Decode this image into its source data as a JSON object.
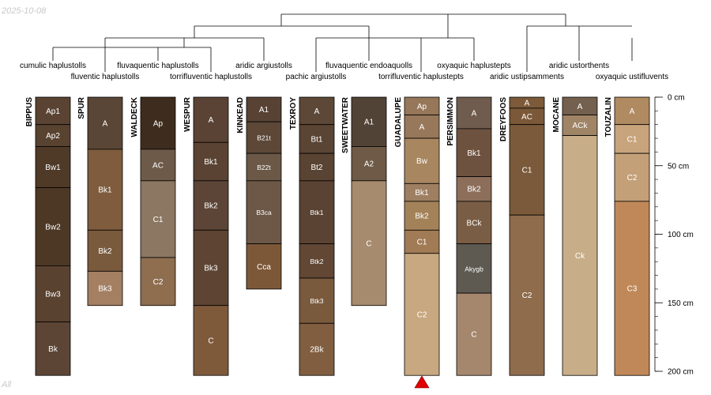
{
  "date_label": "2025-10-08",
  "footer_label": "All",
  "colors": {
    "tree_line": "#000000",
    "horizon_border": "#000000",
    "marker": "#e00000"
  },
  "depth_axis": {
    "unit": "cm",
    "range": [
      0,
      200
    ],
    "ticks": [
      {
        "depth": 0,
        "label": "0 cm"
      },
      {
        "depth": 50,
        "label": "50 cm"
      },
      {
        "depth": 100,
        "label": "100 cm"
      },
      {
        "depth": 150,
        "label": "150 cm"
      },
      {
        "depth": 200,
        "label": "200 cm"
      }
    ]
  },
  "profiles": [
    {
      "name": "BIPPUS",
      "taxon": "cumulic haplustolls",
      "horizons": [
        {
          "name": "Ap1",
          "top": 0,
          "bottom": 20,
          "color": "#5a4332"
        },
        {
          "name": "Ap2",
          "top": 20,
          "bottom": 36,
          "color": "#584230"
        },
        {
          "name": "Bw1",
          "top": 36,
          "bottom": 66,
          "color": "#4f3a28"
        },
        {
          "name": "Bw2",
          "top": 66,
          "bottom": 123,
          "color": "#4d3826"
        },
        {
          "name": "Bw3",
          "top": 123,
          "bottom": 164,
          "color": "#5a4230"
        },
        {
          "name": "Bk",
          "top": 164,
          "bottom": 203,
          "color": "#5c4535"
        }
      ]
    },
    {
      "name": "SPUR",
      "taxon": "fluventic haplustolls",
      "horizons": [
        {
          "name": "A",
          "top": 0,
          "bottom": 38,
          "color": "#5a4636"
        },
        {
          "name": "Bk1",
          "top": 38,
          "bottom": 97,
          "color": "#7e5c3d"
        },
        {
          "name": "Bk2",
          "top": 97,
          "bottom": 127,
          "color": "#7a5a3d"
        },
        {
          "name": "Bk3",
          "top": 127,
          "bottom": 152,
          "color": "#a47f62"
        }
      ]
    },
    {
      "name": "WALDECK",
      "taxon": "fluvaquentic haplustolls",
      "horizons": [
        {
          "name": "Ap",
          "top": 0,
          "bottom": 38,
          "color": "#3e2d1f"
        },
        {
          "name": "AC",
          "top": 38,
          "bottom": 61,
          "color": "#6e5a48"
        },
        {
          "name": "C1",
          "top": 61,
          "bottom": 117,
          "color": "#8c7762"
        },
        {
          "name": "C2",
          "top": 117,
          "bottom": 152,
          "color": "#8e6e4f"
        }
      ]
    },
    {
      "name": "WESPUR",
      "taxon": "torrifluventic haplustolls",
      "horizons": [
        {
          "name": "A",
          "top": 0,
          "bottom": 33,
          "color": "#5a4334"
        },
        {
          "name": "Bk1",
          "top": 33,
          "bottom": 61,
          "color": "#5a4332"
        },
        {
          "name": "Bk2",
          "top": 61,
          "bottom": 97,
          "color": "#5c4536"
        },
        {
          "name": "Bk3",
          "top": 97,
          "bottom": 152,
          "color": "#5e4432"
        },
        {
          "name": "C",
          "top": 152,
          "bottom": 203,
          "color": "#7e5a3b"
        }
      ]
    },
    {
      "name": "KINKEAD",
      "taxon": "aridic argiustolls",
      "horizons": [
        {
          "name": "A1",
          "top": 0,
          "bottom": 18,
          "color": "#574234"
        },
        {
          "name": "B21t",
          "top": 18,
          "bottom": 41,
          "color": "#5d4838"
        },
        {
          "name": "B22t",
          "top": 41,
          "bottom": 61,
          "color": "#6b5847"
        },
        {
          "name": "B3ca",
          "top": 61,
          "bottom": 107,
          "color": "#6d5847"
        },
        {
          "name": "Cca",
          "top": 107,
          "bottom": 140,
          "color": "#7d5838"
        }
      ]
    },
    {
      "name": "TEXROY",
      "taxon": "pachic argiustolls",
      "horizons": [
        {
          "name": "A",
          "top": 0,
          "bottom": 20,
          "color": "#5d4838"
        },
        {
          "name": "Bt1",
          "top": 20,
          "bottom": 41,
          "color": "#5a4434"
        },
        {
          "name": "Bt2",
          "top": 41,
          "bottom": 61,
          "color": "#594332"
        },
        {
          "name": "Btk1",
          "top": 61,
          "bottom": 107,
          "color": "#5b4333"
        },
        {
          "name": "Btk2",
          "top": 107,
          "bottom": 132,
          "color": "#614734"
        },
        {
          "name": "Btk3",
          "top": 132,
          "bottom": 165,
          "color": "#7a5a3d"
        },
        {
          "name": "2Bk",
          "top": 165,
          "bottom": 203,
          "color": "#805e3f"
        }
      ]
    },
    {
      "name": "SWEETWATER",
      "taxon": "fluvaquentic endoaquolls",
      "horizons": [
        {
          "name": "A1",
          "top": 0,
          "bottom": 36,
          "color": "#514437"
        },
        {
          "name": "A2",
          "top": 36,
          "bottom": 61,
          "color": "#6e5a46"
        },
        {
          "name": "C",
          "top": 61,
          "bottom": 152,
          "color": "#a78b6e"
        }
      ]
    },
    {
      "name": "GUADALUPE",
      "taxon": "torrifluventic haplustepts",
      "horizons": [
        {
          "name": "Ap",
          "top": 0,
          "bottom": 13,
          "color": "#96775a"
        },
        {
          "name": "A",
          "top": 13,
          "bottom": 30,
          "color": "#98785a"
        },
        {
          "name": "Bw",
          "top": 30,
          "bottom": 63,
          "color": "#a88660"
        },
        {
          "name": "Bk1",
          "top": 63,
          "bottom": 76,
          "color": "#9e7f62"
        },
        {
          "name": "Bk2",
          "top": 76,
          "bottom": 97,
          "color": "#a48259"
        },
        {
          "name": "C1",
          "top": 97,
          "bottom": 114,
          "color": "#a07b55"
        },
        {
          "name": "C2",
          "top": 114,
          "bottom": 203,
          "color": "#c8a880"
        }
      ]
    },
    {
      "name": "PERSIMMON",
      "taxon": "oxyaquic haplustepts",
      "horizons": [
        {
          "name": "A",
          "top": 0,
          "bottom": 23,
          "color": "#705c4e"
        },
        {
          "name": "Bk1",
          "top": 23,
          "bottom": 58,
          "color": "#6e5240"
        },
        {
          "name": "Bk2",
          "top": 58,
          "bottom": 76,
          "color": "#8c6e5a"
        },
        {
          "name": "BCk",
          "top": 76,
          "bottom": 107,
          "color": "#7a5d45"
        },
        {
          "name": "Akygb",
          "top": 107,
          "bottom": 143,
          "color": "#5e5a52"
        },
        {
          "name": "C",
          "top": 143,
          "bottom": 203,
          "color": "#a5876e"
        }
      ]
    },
    {
      "name": "DREYFOOS",
      "taxon": "aridic ustipsamments",
      "horizons": [
        {
          "name": "A",
          "top": 0,
          "bottom": 8,
          "color": "#7d5a3a"
        },
        {
          "name": "AC",
          "top": 8,
          "bottom": 20,
          "color": "#7a5838"
        },
        {
          "name": "C1",
          "top": 20,
          "bottom": 86,
          "color": "#7a5a3a"
        },
        {
          "name": "C2",
          "top": 86,
          "bottom": 203,
          "color": "#8e6c4c"
        }
      ]
    },
    {
      "name": "MOCANE",
      "taxon": "aridic ustorthents",
      "horizons": [
        {
          "name": "A",
          "top": 0,
          "bottom": 13,
          "color": "#74604e"
        },
        {
          "name": "ACk",
          "top": 13,
          "bottom": 28,
          "color": "#a08466"
        },
        {
          "name": "Ck",
          "top": 28,
          "bottom": 203,
          "color": "#c8ae88"
        }
      ]
    },
    {
      "name": "TOUZALIN",
      "taxon": "oxyaquic ustifluvents",
      "horizons": [
        {
          "name": "A",
          "top": 0,
          "bottom": 20,
          "color": "#b08a60"
        },
        {
          "name": "C1",
          "top": 20,
          "bottom": 41,
          "color": "#c8a47c"
        },
        {
          "name": "C2",
          "top": 41,
          "bottom": 76,
          "color": "#c4a078"
        },
        {
          "name": "C3",
          "top": 76,
          "bottom": 203,
          "color": "#c08858"
        }
      ]
    }
  ]
}
